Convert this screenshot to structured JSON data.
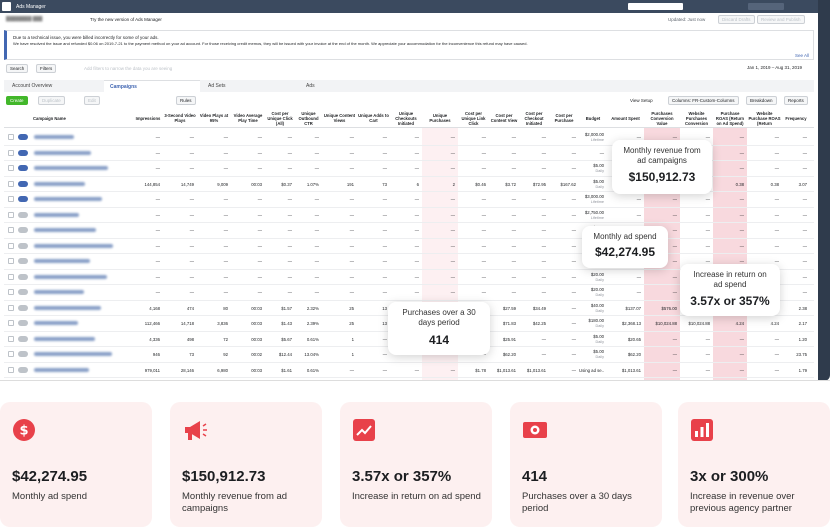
{
  "header": {
    "app": "Ads Manager",
    "try_new": "Try the new version of Ads Manager",
    "updated": "Updated: Just now",
    "discard": "Discard Drafts",
    "review": "Review and Publish"
  },
  "notice": {
    "line1": "Due to a technical issue, you were billed incorrectly for some of your ads.",
    "line2": "We have resolved the issue and refunded $0.06 on 2019-7-21 to the payment method on your ad account. For those receiving credit memos, they will be issued with your invoice at the end of the month. We appreciate your accommodation for the inconvenience this refund may have caused.",
    "see_all": "See All"
  },
  "toolbar": {
    "search": "Search",
    "filters": "Filters",
    "placeholder": "Add filters to narrow the data you are seeing",
    "date_range": "Jan 1, 2019 – Aug 31, 2019"
  },
  "tabs": [
    "Account Overview",
    "Campaigns",
    "Ad Sets",
    "Ads"
  ],
  "actions": {
    "create": "Create",
    "duplicate": "Duplicate",
    "edit": "Edit",
    "rules": "Rules",
    "view_setup": "View Setup",
    "columns": "Columns: FR-Custom-Columns",
    "breakdown": "Breakdown",
    "reports": "Reports"
  },
  "table": {
    "columns": [
      "Campaign Name",
      "Impressions",
      "3-Second Video Plays",
      "Video Plays at 95%",
      "Video Average Play Time",
      "Cost per Unique Click (All)",
      "Unique Outbound CTR",
      "Unique Content Views",
      "Unique Adds to Cart",
      "Unique Checkouts Initiated",
      "Unique Purchases",
      "Cost per Unique Link Click",
      "Cost per Content View",
      "Cost per Checkout Initiated",
      "Cost per Purchase",
      "Budget",
      "Amount Spent",
      "Purchases Conversion Value",
      "Website Purchases Conversion",
      "Purchase ROAS (Return on Ad Spend)",
      "Website Purchase ROAS (Return",
      "Frequency"
    ],
    "rows": [
      {
        "on": true,
        "cells": [
          "—",
          "—",
          "—",
          "—",
          "—",
          "—",
          "—",
          "—",
          "—",
          "—",
          "—",
          "—",
          "—",
          "—",
          "$2,000.00",
          "—",
          "—",
          "—",
          "—",
          "—",
          "—"
        ],
        "period": "Lifetime"
      },
      {
        "on": true,
        "cells": [
          "—",
          "—",
          "—",
          "—",
          "—",
          "—",
          "—",
          "—",
          "—",
          "—",
          "—",
          "—",
          "—",
          "—",
          "—",
          "—",
          "—",
          "—",
          "—",
          "—",
          "—"
        ],
        "period": null
      },
      {
        "on": true,
        "cells": [
          "—",
          "—",
          "—",
          "—",
          "—",
          "—",
          "—",
          "—",
          "—",
          "—",
          "—",
          "—",
          "—",
          "—",
          "$5.00",
          "—",
          "—",
          "—",
          "—",
          "—",
          "—"
        ],
        "period": "Daily"
      },
      {
        "on": true,
        "cells": [
          "144,854",
          "14,749",
          "9,009",
          "00:03",
          "$0.37",
          "1.07%",
          "191",
          "73",
          "6",
          "2",
          "$0.46",
          "$3.72",
          "$72.95",
          "$167.62",
          "$5.00",
          "—",
          "—",
          "—",
          "0.38",
          "0.38",
          "3.07"
        ],
        "period": "Daily"
      },
      {
        "on": true,
        "cells": [
          "—",
          "—",
          "—",
          "—",
          "—",
          "—",
          "—",
          "—",
          "—",
          "—",
          "—",
          "—",
          "—",
          "—",
          "$3,000.00",
          "—",
          "—",
          "—",
          "—",
          "—",
          "—"
        ],
        "period": "Lifetime"
      },
      {
        "on": false,
        "cells": [
          "—",
          "—",
          "—",
          "—",
          "—",
          "—",
          "—",
          "—",
          "—",
          "—",
          "—",
          "—",
          "—",
          "—",
          "$2,750.00",
          "—",
          "—",
          "—",
          "—",
          "—",
          "—"
        ],
        "period": "Lifetime"
      },
      {
        "on": false,
        "cells": [
          "—",
          "—",
          "—",
          "—",
          "—",
          "—",
          "—",
          "—",
          "—",
          "—",
          "—",
          "—",
          "—",
          "—",
          "$5.00",
          "—",
          "—",
          "—",
          "—",
          "—",
          "—"
        ],
        "period": "Daily"
      },
      {
        "on": false,
        "cells": [
          "—",
          "—",
          "—",
          "—",
          "—",
          "—",
          "—",
          "—",
          "—",
          "—",
          "—",
          "—",
          "—",
          "—",
          "$20.00",
          "—",
          "—",
          "—",
          "—",
          "—",
          "—"
        ],
        "period": "Daily"
      },
      {
        "on": false,
        "cells": [
          "—",
          "—",
          "—",
          "—",
          "—",
          "—",
          "—",
          "—",
          "—",
          "—",
          "—",
          "—",
          "—",
          "—",
          "$0.00",
          "—",
          "—",
          "—",
          "—",
          "—",
          "—"
        ],
        "period": "Daily"
      },
      {
        "on": false,
        "cells": [
          "—",
          "—",
          "—",
          "—",
          "—",
          "—",
          "—",
          "—",
          "—",
          "—",
          "—",
          "—",
          "—",
          "—",
          "$20.00",
          "—",
          "—",
          "—",
          "—",
          "—",
          "—"
        ],
        "period": "Daily"
      },
      {
        "on": false,
        "cells": [
          "—",
          "—",
          "—",
          "—",
          "—",
          "—",
          "—",
          "—",
          "—",
          "—",
          "—",
          "—",
          "—",
          "—",
          "$20.00",
          "—",
          "—",
          "—",
          "—",
          "—",
          "—"
        ],
        "period": "Daily"
      },
      {
        "on": false,
        "cells": [
          "4,168",
          "474",
          "80",
          "00:03",
          "$1.57",
          "2.32%",
          "25",
          "13",
          "—",
          "—",
          "$3.37",
          "$27.59",
          "$34.49",
          "—",
          "$40.00",
          "$137.07",
          "$576.00",
          "—",
          "—",
          "—",
          "2.38"
        ],
        "period": "Daily"
      },
      {
        "on": false,
        "cells": [
          "112,466",
          "14,718",
          "3,836",
          "00:03",
          "$1.43",
          "2.39%",
          "25",
          "13",
          "—",
          "—",
          "$6.26",
          "$71.83",
          "$42.25",
          "—",
          "$180.00",
          "$2,368.13",
          "$10,024.88",
          "$10,024.88",
          "4.24",
          "4.24",
          "2.17"
        ],
        "period": "Daily"
      },
      {
        "on": false,
        "cells": [
          "4,336",
          "498",
          "72",
          "00:03",
          "$5.67",
          "0.61%",
          "1",
          "—",
          "—",
          "—",
          "$35.00",
          "$25.91",
          "—",
          "—",
          "$5.00",
          "$20.65",
          "—",
          "—",
          "—",
          "—",
          "1.20"
        ],
        "period": "Daily"
      },
      {
        "on": false,
        "cells": [
          "946",
          "73",
          "92",
          "00:02",
          "$12.44",
          "13.04%",
          "1",
          "—",
          "—",
          "—",
          "—",
          "$62.20",
          "—",
          "—",
          "$5.00",
          "$62.20",
          "—",
          "—",
          "—",
          "—",
          "23.75"
        ],
        "period": "Daily"
      },
      {
        "on": false,
        "cells": [
          "979,011",
          "28,146",
          "6,980",
          "00:03",
          "$1.61",
          "0.61%",
          "—",
          "—",
          "—",
          "—",
          "$1.78",
          "$1,013.61",
          "$1,013.61",
          "—",
          "Using ad se...",
          "$1,013.61",
          "—",
          "—",
          "—",
          "—",
          "1.79"
        ],
        "period": null
      }
    ]
  },
  "callouts": [
    {
      "label": "Monthly revenue from ad campaigns",
      "value": "$150,912.73"
    },
    {
      "label": "Monthly ad spend",
      "value": "$42,274.95"
    },
    {
      "label": "Increase in return on ad spend",
      "value": "3.57x or 357%"
    },
    {
      "label": "Purchases over a 30 days period",
      "value": "414"
    }
  ],
  "stats": [
    {
      "value": "$42,274.95",
      "label": "Monthly ad spend"
    },
    {
      "value": "$150,912.73",
      "label": "Monthly revenue from ad campaigns"
    },
    {
      "value": "3.57x or 357%",
      "label": "Increase in return on ad spend"
    },
    {
      "value": "414",
      "label": "Purchases over a 30 days period"
    },
    {
      "value": "3x or 300%",
      "label": "Increase in revenue over previous agency partner"
    }
  ]
}
